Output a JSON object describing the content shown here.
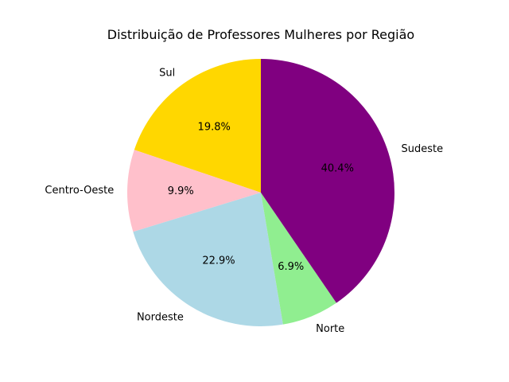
{
  "chart_data": {
    "type": "pie",
    "title": "Distribuição de Professores Mulheres por Região",
    "start_angle_deg": 90,
    "counterclockwise": true,
    "slices": [
      {
        "label": "Sul",
        "percent": 19.8,
        "percent_label": "19.8%",
        "color": "#FFD700"
      },
      {
        "label": "Centro-Oeste",
        "percent": 9.9,
        "percent_label": "9.9%",
        "color": "#FFC0CB"
      },
      {
        "label": "Nordeste",
        "percent": 22.9,
        "percent_label": "22.9%",
        "color": "#ADD8E6"
      },
      {
        "label": "Norte",
        "percent": 6.9,
        "percent_label": "6.9%",
        "color": "#90EE90"
      },
      {
        "label": "Sudeste",
        "percent": 40.4,
        "percent_label": "40.4%",
        "color": "#800080"
      }
    ]
  }
}
